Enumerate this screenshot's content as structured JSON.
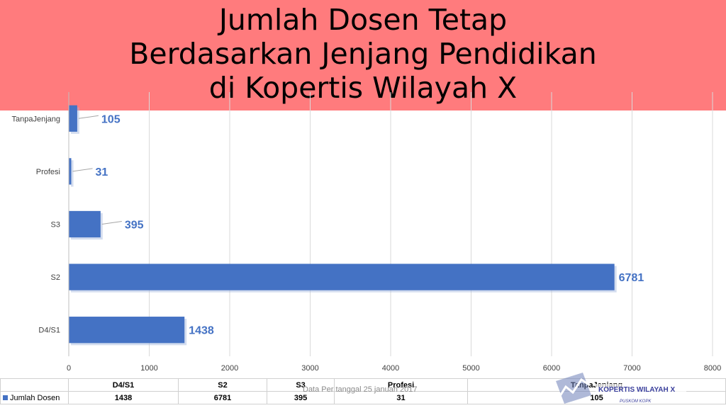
{
  "title": {
    "line1": "Jumlah Dosen Tetap",
    "line2": "Berdasarkan Jenjang Pendidikan",
    "line3": "di Kopertis Wilayah X"
  },
  "footnote": "Data Per tanggal 25 januari 2017",
  "logo": {
    "name": "kopertis-logo",
    "text": "KOPERTIS WILAYAH X",
    "subtext": "PUSKOM KOPK"
  },
  "colors": {
    "title_band": "#ff7b7d",
    "bar": "#4472c4"
  },
  "chart_data": {
    "type": "bar",
    "orientation": "horizontal",
    "categories": [
      "D4/S1",
      "S2",
      "S3",
      "Profesi",
      "TanpaJenjang"
    ],
    "series": [
      {
        "name": "Jumlah Dosen",
        "values": [
          1438,
          6781,
          395,
          31,
          105
        ]
      }
    ],
    "xlim": [
      0,
      8000
    ],
    "xticks": [
      0,
      1000,
      2000,
      3000,
      4000,
      5000,
      6000,
      7000,
      8000
    ],
    "grid": true,
    "data_labels": true,
    "data_table": true,
    "table": {
      "headers": [
        "D4/S1",
        "S2",
        "S3",
        "Profesi",
        "TanpaJenjang"
      ],
      "row_label": "Jumlah Dosen",
      "row_values": [
        "1438",
        "6781",
        "395",
        "31",
        "105"
      ]
    }
  }
}
